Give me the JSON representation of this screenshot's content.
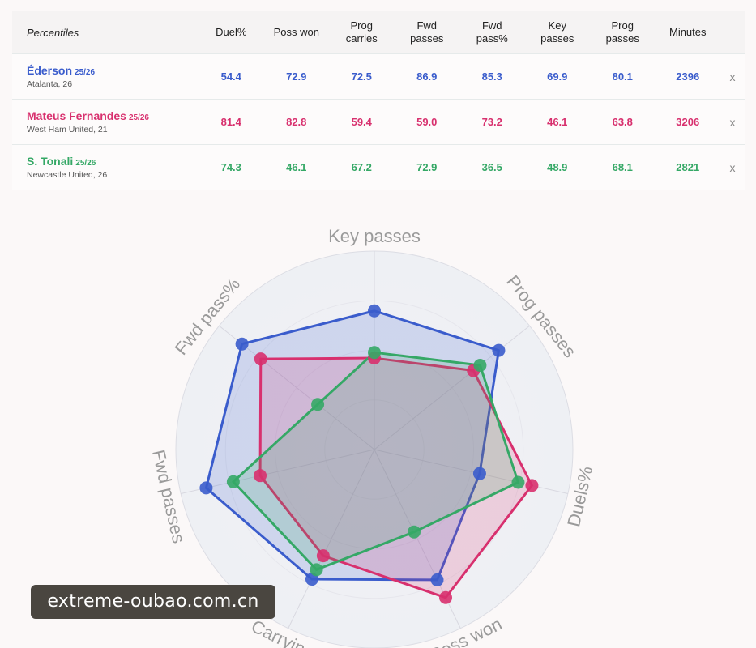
{
  "chart_data": {
    "type": "radar",
    "table_title": "Percentiles",
    "columns": [
      "Duel%",
      "Poss won",
      "Prog carries",
      "Fwd passes",
      "Fwd pass%",
      "Key passes",
      "Prog passes",
      "Minutes"
    ],
    "axes": [
      "Duels%",
      "Poss won",
      "Carrying",
      "Fwd passes",
      "Fwd pass%",
      "Key passes",
      "Prog passes"
    ],
    "rlim": [
      0,
      100
    ],
    "series": [
      {
        "name": "Éderson",
        "season": "25/26",
        "team": "Atalanta, 26",
        "color": "#3a5ccc",
        "values": [
          54.4,
          72.9,
          72.5,
          86.9,
          85.3,
          69.9,
          80.1
        ],
        "value_labels": [
          "54.4",
          "72.9",
          "72.5",
          "86.9",
          "85.3",
          "69.9",
          "80.1"
        ],
        "minutes": 2396
      },
      {
        "name": "Mateus Fernandes",
        "season": "25/26",
        "team": "West Ham United, 21",
        "color": "#d8306e",
        "values": [
          81.4,
          82.8,
          59.4,
          59.0,
          73.2,
          46.1,
          63.8
        ],
        "value_labels": [
          "81.4",
          "82.8",
          "59.4",
          "59.0",
          "73.2",
          "46.1",
          "63.8"
        ],
        "minutes": 3206
      },
      {
        "name": "S. Tonali",
        "season": "25/26",
        "team": "Newcastle United, 26",
        "color": "#35a866",
        "values": [
          74.3,
          46.1,
          67.2,
          72.9,
          36.5,
          48.9,
          68.1
        ],
        "value_labels": [
          "74.3",
          "46.1",
          "67.2",
          "72.9",
          "36.5",
          "48.9",
          "68.1"
        ],
        "minutes": 2821
      }
    ],
    "close_label": "x",
    "watermark": "extreme-oubao.com.cn"
  }
}
